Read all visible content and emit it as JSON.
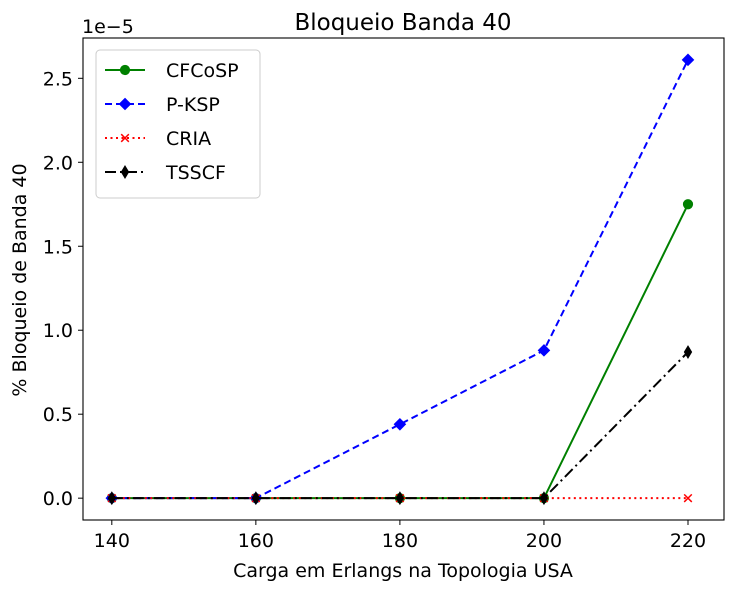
{
  "chart_data": {
    "type": "line",
    "title": "Bloqueio Banda 40",
    "xlabel": "Carga em Erlangs na Topologia USA",
    "ylabel": "% Bloqueio de Banda 40",
    "y_offset_label": "1e−5",
    "y_scale_factor": 1e-05,
    "x": [
      140,
      160,
      180,
      200,
      220
    ],
    "xlim": [
      136,
      225
    ],
    "ylim": [
      -0.13,
      2.74
    ],
    "x_ticks": [
      "140",
      "160",
      "180",
      "200",
      "220"
    ],
    "y_ticks": [
      "0.0",
      "0.5",
      "1.0",
      "1.5",
      "2.0",
      "2.5"
    ],
    "legend_position": "top-left",
    "grid": false,
    "series": [
      {
        "name": "CFCoSP",
        "values": [
          0,
          0,
          0,
          0,
          1.75
        ],
        "color": "#008000",
        "linestyle": "solid",
        "marker": "circle"
      },
      {
        "name": "P-KSP",
        "values": [
          0,
          0,
          0.44,
          0.88,
          2.61
        ],
        "color": "#0000ff",
        "linestyle": "dashed",
        "marker": "diamond"
      },
      {
        "name": "CRIA",
        "values": [
          0,
          0,
          0,
          0,
          0
        ],
        "color": "#ff0000",
        "linestyle": "dotted",
        "marker": "x"
      },
      {
        "name": "TSSCF",
        "values": [
          0,
          0,
          0,
          0,
          0.87
        ],
        "color": "#000000",
        "linestyle": "dashdot",
        "marker": "thin-diamond"
      }
    ]
  }
}
